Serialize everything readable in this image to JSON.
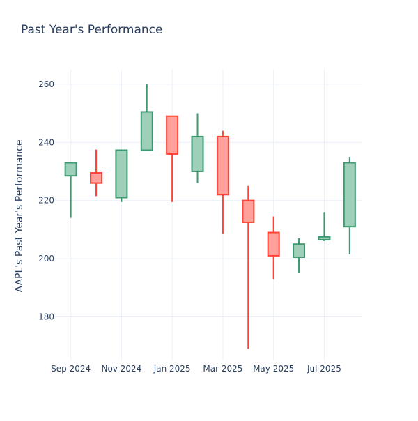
{
  "chart_data": {
    "type": "candlestick",
    "title": "Past Year's Performance",
    "xlabel": "",
    "ylabel": "AAPL's Past Year's Performance",
    "ylim": [
      165,
      265
    ],
    "y_ticks": [
      180,
      200,
      220,
      240,
      260
    ],
    "x_ticks": [
      {
        "label": "Sep 2024",
        "x": 0
      },
      {
        "label": "Nov 2024",
        "x": 2
      },
      {
        "label": "Jan 2025",
        "x": 4
      },
      {
        "label": "Mar 2025",
        "x": 6
      },
      {
        "label": "May 2025",
        "x": 8
      },
      {
        "label": "Jul 2025",
        "x": 10
      }
    ],
    "xlim": [
      -0.65,
      11.5
    ],
    "candles": [
      {
        "period": "Sep 2024",
        "x": 0,
        "open": 228.5,
        "high": 233.0,
        "low": 214.0,
        "close": 233.0
      },
      {
        "period": "Oct 2024",
        "x": 1,
        "open": 229.5,
        "high": 237.5,
        "low": 221.5,
        "close": 226.0
      },
      {
        "period": "Nov 2024",
        "x": 2,
        "open": 221.0,
        "high": 237.5,
        "low": 219.5,
        "close": 237.3
      },
      {
        "period": "Dec 2024",
        "x": 3,
        "open": 237.3,
        "high": 260.0,
        "low": 237.3,
        "close": 250.5
      },
      {
        "period": "Jan 2025",
        "x": 4,
        "open": 249.0,
        "high": 249.0,
        "low": 219.5,
        "close": 236.0
      },
      {
        "period": "Feb 2025",
        "x": 5,
        "open": 230.0,
        "high": 250.0,
        "low": 226.0,
        "close": 242.0
      },
      {
        "period": "Mar 2025",
        "x": 6,
        "open": 242.0,
        "high": 244.0,
        "low": 208.5,
        "close": 222.0
      },
      {
        "period": "Apr 2025",
        "x": 7,
        "open": 220.0,
        "high": 225.0,
        "low": 169.0,
        "close": 212.5
      },
      {
        "period": "May 2025",
        "x": 8,
        "open": 209.0,
        "high": 214.5,
        "low": 193.0,
        "close": 201.0
      },
      {
        "period": "Jun 2025",
        "x": 9,
        "open": 200.5,
        "high": 207.0,
        "low": 195.0,
        "close": 205.0
      },
      {
        "period": "Jul 2025",
        "x": 10,
        "open": 206.5,
        "high": 216.0,
        "low": 206.0,
        "close": 207.5
      },
      {
        "period": "Aug 2025",
        "x": 11,
        "open": 211.0,
        "high": 235.0,
        "low": 201.5,
        "close": 233.0
      }
    ],
    "colors": {
      "increasing_line": "#3d9970",
      "increasing_fill": "#9ecfb8",
      "decreasing_line": "#ff4136",
      "decreasing_fill": "#ffa09b",
      "grid": "#ebf0f8",
      "text": "#2a3f5f"
    }
  }
}
